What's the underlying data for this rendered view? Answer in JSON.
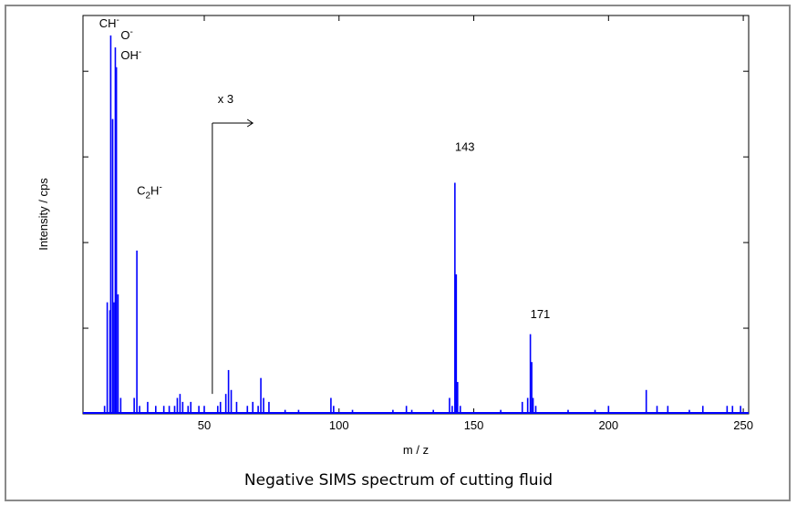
{
  "figure": {
    "caption": "Negative SIMS spectrum of cutting fluid"
  },
  "chart_data": {
    "type": "line",
    "xlabel": "m / z",
    "ylabel": "Intensity / cps",
    "xlim": [
      5,
      252
    ],
    "ylim": [
      0,
      1.0
    ],
    "x_ticks": [
      50,
      100,
      150,
      200,
      250
    ],
    "y_tick_values": [
      0.215,
      0.43,
      0.645,
      0.86
    ],
    "y_tick_labels_shown": false,
    "grid": false,
    "line_color": "#0000ff",
    "series": [
      {
        "peaks": [
          [
            13,
            0.02
          ],
          [
            14,
            0.28
          ],
          [
            15,
            0.26
          ],
          [
            15.3,
            0.95
          ],
          [
            16,
            0.74
          ],
          [
            16.5,
            0.28
          ],
          [
            17,
            0.92
          ],
          [
            17.4,
            0.87
          ],
          [
            18,
            0.3
          ],
          [
            19,
            0.04
          ],
          [
            24,
            0.04
          ],
          [
            25,
            0.41
          ],
          [
            26,
            0.02
          ],
          [
            29,
            0.03
          ],
          [
            32,
            0.02
          ],
          [
            35,
            0.02
          ],
          [
            37,
            0.02
          ],
          [
            39,
            0.02
          ],
          [
            40,
            0.04
          ],
          [
            41,
            0.05
          ],
          [
            42,
            0.03
          ],
          [
            44,
            0.02
          ],
          [
            45,
            0.03
          ],
          [
            48,
            0.02
          ],
          [
            50,
            0.02
          ],
          [
            55,
            0.02
          ],
          [
            56,
            0.03
          ],
          [
            58,
            0.05
          ],
          [
            59,
            0.11
          ],
          [
            60,
            0.06
          ],
          [
            62,
            0.03
          ],
          [
            66,
            0.02
          ],
          [
            68,
            0.03
          ],
          [
            70,
            0.02
          ],
          [
            71,
            0.09
          ],
          [
            72,
            0.04
          ],
          [
            74,
            0.03
          ],
          [
            80,
            0.01
          ],
          [
            85,
            0.01
          ],
          [
            97,
            0.04
          ],
          [
            98,
            0.02
          ],
          [
            105,
            0.01
          ],
          [
            120,
            0.01
          ],
          [
            125,
            0.02
          ],
          [
            127,
            0.01
          ],
          [
            135,
            0.01
          ],
          [
            141,
            0.04
          ],
          [
            142,
            0.02
          ],
          [
            143,
            0.58
          ],
          [
            143.5,
            0.35
          ],
          [
            144,
            0.08
          ],
          [
            145,
            0.02
          ],
          [
            160,
            0.01
          ],
          [
            168,
            0.03
          ],
          [
            170,
            0.04
          ],
          [
            171,
            0.2
          ],
          [
            171.5,
            0.13
          ],
          [
            172,
            0.04
          ],
          [
            173,
            0.02
          ],
          [
            185,
            0.01
          ],
          [
            195,
            0.01
          ],
          [
            200,
            0.02
          ],
          [
            214,
            0.06
          ],
          [
            218,
            0.02
          ],
          [
            222,
            0.02
          ],
          [
            230,
            0.01
          ],
          [
            235,
            0.02
          ],
          [
            244,
            0.02
          ],
          [
            246,
            0.02
          ],
          [
            249,
            0.02
          ]
        ]
      }
    ],
    "annotations": [
      {
        "text": "CH",
        "superscript": "-",
        "at": [
          11,
          0.97
        ]
      },
      {
        "text": "O",
        "superscript": "-",
        "at": [
          19,
          0.94
        ]
      },
      {
        "text": "OH",
        "superscript": "-",
        "at": [
          19,
          0.89
        ]
      },
      {
        "text": "C",
        "subscript": "2",
        "after": "H",
        "superscript": "-",
        "at": [
          25,
          0.55
        ]
      },
      {
        "text": "x 3",
        "at": [
          55,
          0.78
        ]
      },
      {
        "text": "143",
        "at": [
          143,
          0.66
        ]
      },
      {
        "text": "171",
        "at": [
          171,
          0.24
        ]
      }
    ],
    "scale_marker": {
      "x": 53,
      "y_start": 0.05,
      "y_end": 0.73,
      "x_end": 68
    }
  }
}
